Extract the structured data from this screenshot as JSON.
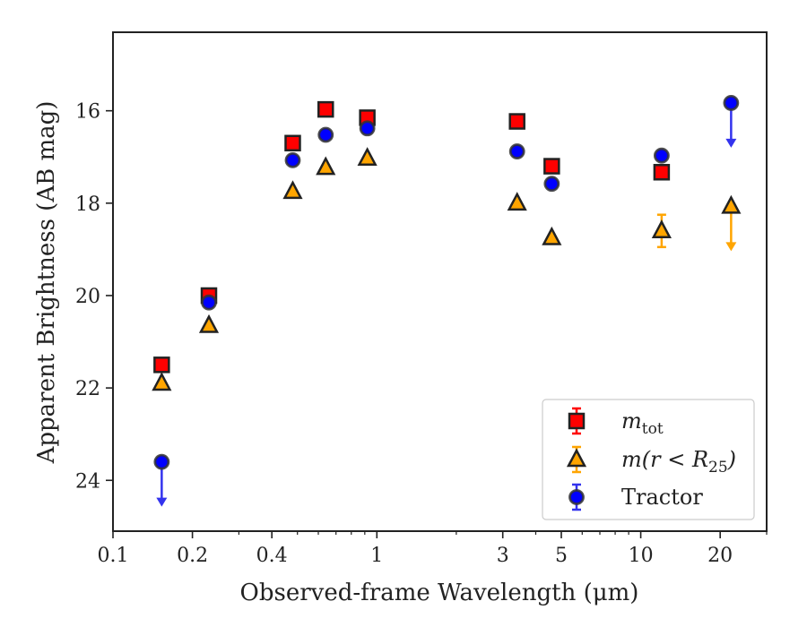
{
  "chart_data": {
    "type": "scatter",
    "xlabel": "Observed-frame Wavelength (μm)",
    "ylabel": "Apparent Brightness (AB mag)",
    "xscale": "log",
    "xlim": [
      0.1,
      30
    ],
    "ylim": [
      25.1,
      14.3
    ],
    "y_inverted": true,
    "grid": false,
    "legend_position": "bottom-right",
    "x_ticks": [
      0.1,
      0.2,
      0.4,
      1,
      3,
      5,
      10,
      20
    ],
    "x_tick_labels": [
      "0.1",
      "0.2",
      "0.4",
      "1",
      "3",
      "5",
      "10",
      "20"
    ],
    "y_ticks": [
      16,
      18,
      20,
      22,
      24
    ],
    "y_tick_labels": [
      "16",
      "18",
      "20",
      "22",
      "24"
    ],
    "series": [
      {
        "legend_main": "m",
        "legend_sub": "tot",
        "marker": "square",
        "color": "#ff0000",
        "points": [
          {
            "x": 0.153,
            "y": 21.5
          },
          {
            "x": 0.231,
            "y": 20.0
          },
          {
            "x": 0.48,
            "y": 16.7
          },
          {
            "x": 0.64,
            "y": 15.97
          },
          {
            "x": 0.92,
            "y": 16.15
          },
          {
            "x": 3.4,
            "y": 16.23
          },
          {
            "x": 4.6,
            "y": 17.2
          },
          {
            "x": 12.0,
            "y": 17.33
          }
        ]
      },
      {
        "legend_main": "m(r < R",
        "legend_sub": "25",
        "legend_close": ")",
        "marker": "triangle",
        "color": "#ffa500",
        "points": [
          {
            "x": 0.153,
            "y": 21.9
          },
          {
            "x": 0.231,
            "y": 20.65
          },
          {
            "x": 0.48,
            "y": 17.75
          },
          {
            "x": 0.64,
            "y": 17.23
          },
          {
            "x": 0.92,
            "y": 17.03
          },
          {
            "x": 3.4,
            "y": 18.0
          },
          {
            "x": 4.6,
            "y": 18.75
          },
          {
            "x": 12.0,
            "y": 18.6,
            "yerr": 0.35
          },
          {
            "x": 22.0,
            "y": 18.07,
            "upper_limit": true
          }
        ]
      },
      {
        "legend_main": "Tractor",
        "marker": "circle",
        "color": "#0000ff",
        "points": [
          {
            "x": 0.153,
            "y": 23.6,
            "upper_limit": true
          },
          {
            "x": 0.231,
            "y": 20.15
          },
          {
            "x": 0.48,
            "y": 17.07
          },
          {
            "x": 0.64,
            "y": 16.52
          },
          {
            "x": 0.92,
            "y": 16.38
          },
          {
            "x": 3.4,
            "y": 16.88
          },
          {
            "x": 4.6,
            "y": 17.58
          },
          {
            "x": 12.0,
            "y": 16.97
          },
          {
            "x": 22.0,
            "y": 15.83,
            "upper_limit": true
          }
        ]
      }
    ]
  }
}
